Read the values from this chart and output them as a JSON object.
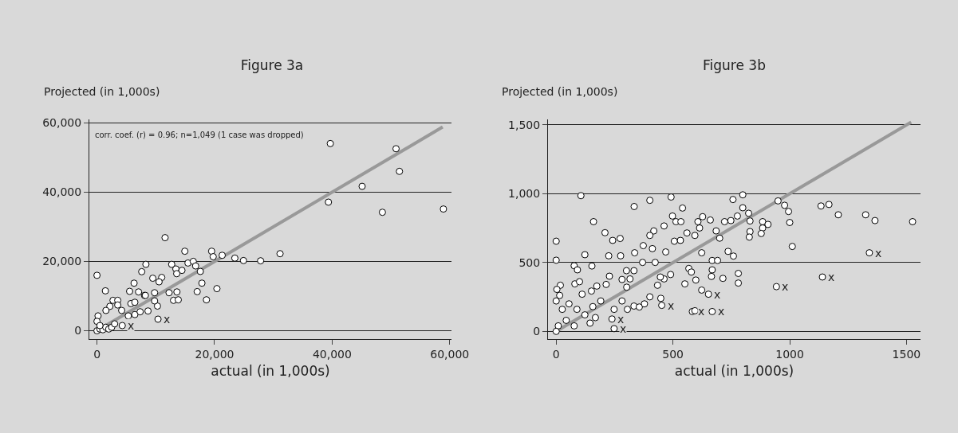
{
  "chart_data": [
    {
      "type": "scatter",
      "title": "Figure 3a",
      "xlabel": "actual (in 1,000s)",
      "ylabel": "Projected (in 1,000s)",
      "grid": "y",
      "xlim": [
        -1300,
        60300
      ],
      "ylim": [
        -2400,
        61000
      ],
      "xticks": [
        {
          "value": 0,
          "label": "0"
        },
        {
          "value": 20000,
          "label": "20,000"
        },
        {
          "value": 40000,
          "label": "40,000"
        },
        {
          "value": 60000,
          "label": "60,000"
        }
      ],
      "yticks": [
        {
          "value": 0,
          "label": "0"
        },
        {
          "value": 20000,
          "label": "20,000"
        },
        {
          "value": 40000,
          "label": "40,000"
        },
        {
          "value": 60000,
          "label": "60,000"
        }
      ],
      "annotations": [
        "corr. coef. (r) = 0.96; n=1,049 (1 case was dropped)",
        {
          "text": "x",
          "x": 10380,
          "y": 3350
        },
        {
          "text": "x",
          "x": 4300,
          "y": 1500
        }
      ],
      "series": [
        {
          "type": "scatter",
          "marker": "circle",
          "color": "#ffffff",
          "x": [
            11580,
            0,
            1430,
            14940,
            19500,
            19770,
            21300,
            23450,
            24920,
            27830,
            31140,
            39690,
            50870,
            51450,
            45100,
            39370,
            48550,
            58930,
            8320,
            7610,
            12710,
            13420,
            14450,
            15480,
            16380,
            16780,
            17580,
            13560,
            9490,
            11010,
            6310,
            5550,
            7070,
            8090,
            9800,
            10560,
            12260,
            13600,
            13020,
            13830,
            17050,
            17850,
            18620,
            20400,
            10290,
            8680,
            10380,
            4300,
            2730,
            3530,
            3530,
            2190,
            1520,
            180,
            0,
            4200,
            5330,
            6440,
            5770,
            7340,
            6440,
            8230,
            9800,
            0,
            500,
            1000,
            1500,
            2000,
            500,
            2500,
            3000
          ],
          "values": [
            26870,
            16000,
            11520,
            22950,
            22950,
            21370,
            21770,
            20970,
            20260,
            20190,
            22240,
            54030,
            52540,
            46000,
            41680,
            37120,
            34190,
            35140,
            19170,
            17050,
            19170,
            17830,
            17430,
            19550,
            20020,
            18700,
            17120,
            16480,
            15160,
            15390,
            13740,
            11380,
            11210,
            10200,
            10980,
            14120,
            10980,
            11210,
            8780,
            8930,
            11290,
            13740,
            8930,
            12160,
            7130,
            5710,
            3350,
            1500,
            8780,
            8780,
            7440,
            7040,
            5860,
            4300,
            2720,
            5860,
            4300,
            4680,
            7840,
            5480,
            8220,
            10200,
            8620,
            0,
            500,
            300,
            1000,
            500,
            1500,
            1000,
            2000
          ]
        },
        {
          "type": "line",
          "marker": "none",
          "color": "#999999",
          "x": [
            0,
            58800
          ],
          "values": [
            0,
            58800
          ]
        }
      ]
    },
    {
      "type": "scatter",
      "title": "Figure 3b",
      "xlabel": "actual (in 1,000s)",
      "ylabel": "Projected (in 1,000s)",
      "grid": "y",
      "xlim": [
        -35,
        1560
      ],
      "ylim": [
        -56,
        1540
      ],
      "xticks": [
        {
          "value": 0,
          "label": "0"
        },
        500,
        1000,
        1500
      ],
      "yticks": [
        {
          "value": 0,
          "label": "0"
        },
        500,
        {
          "value": 1000,
          "label": "1,000"
        },
        {
          "value": 1500,
          "label": "1,500"
        }
      ],
      "annotations": [
        {
          "text": "x",
          "x": 452,
          "y": 189
        },
        {
          "text": "x",
          "x": 652,
          "y": 270
        },
        {
          "text": "x",
          "x": 583,
          "y": 144
        },
        {
          "text": "x",
          "x": 668,
          "y": 144
        },
        {
          "text": "x",
          "x": 248,
          "y": 20
        },
        {
          "text": "x",
          "x": 239,
          "y": 90
        },
        {
          "text": "x",
          "x": 1341,
          "y": 571
        },
        {
          "text": "x",
          "x": 1140,
          "y": 395
        },
        {
          "text": "x",
          "x": 943,
          "y": 325
        }
      ],
      "series": [
        {
          "type": "scatter",
          "marker": "circle",
          "color": "#ffffff",
          "x": [
            106,
            0,
            0,
            160,
            123,
            209,
            242,
            274,
            225,
            276,
            334,
            401,
            492,
            541,
            498,
            513,
            534,
            462,
            418,
            401,
            373,
            412,
            336,
            370,
            424,
            469,
            506,
            532,
            560,
            607,
            627,
            660,
            685,
            700,
            757,
            776,
            748,
            721,
            614,
            594,
            623,
            668,
            691,
            736,
            759,
            668,
            665,
            714,
            780,
            780,
            568,
            579,
            598,
            551,
            490,
            462,
            446,
            434,
            401,
            448,
            452,
            623,
            652,
            583,
            668,
            594,
            248,
            239,
            333,
            316,
            282,
            302,
            301,
            228,
            214,
            174,
            151,
            111,
            80,
            100,
            77,
            91,
            153,
            18,
            3,
            15,
            0,
            26,
            55,
            89,
            123,
            157,
            191,
            248,
            282,
            305,
            333,
            356,
            378,
            43,
            9,
            77,
            145,
            168,
            0,
            799,
            799,
            824,
            830,
            884,
            907,
            884,
            878,
            830,
            827,
            950,
            978,
            995,
            1000,
            1011,
            1134,
            1168,
            1208,
            1325,
            1365,
            1526,
            1341,
            1140,
            943
          ],
          "values": [
            986,
            655,
            517,
            797,
            557,
            717,
            661,
            675,
            549,
            549,
            907,
            952,
            976,
            896,
            838,
            797,
            797,
            766,
            730,
            697,
            623,
            601,
            571,
            501,
            501,
            577,
            655,
            661,
            715,
            797,
            833,
            809,
            730,
            677,
            958,
            838,
            805,
            797,
            751,
            697,
            571,
            515,
            515,
            581,
            547,
            447,
            399,
            385,
            421,
            351,
            457,
            431,
            373,
            345,
            413,
            381,
            395,
            335,
            251,
            240,
            189,
            300,
            270,
            144,
            144,
            150,
            20,
            90,
            441,
            381,
            377,
            321,
            441,
            401,
            341,
            329,
            293,
            270,
            345,
            361,
            477,
            447,
            475,
            335,
            305,
            261,
            221,
            160,
            200,
            160,
            120,
            180,
            221,
            160,
            221,
            160,
            184,
            177,
            200,
            80,
            40,
            40,
            60,
            100,
            0,
            992,
            898,
            858,
            802,
            797,
            777,
            751,
            711,
            725,
            685,
            948,
            916,
            871,
            791,
            617,
            911,
            922,
            847,
            847,
            805,
            797,
            571,
            395,
            325
          ]
        },
        {
          "type": "line",
          "marker": "none",
          "color": "#999999",
          "x": [
            0,
            1520
          ],
          "values": [
            0,
            1520
          ]
        }
      ]
    }
  ]
}
